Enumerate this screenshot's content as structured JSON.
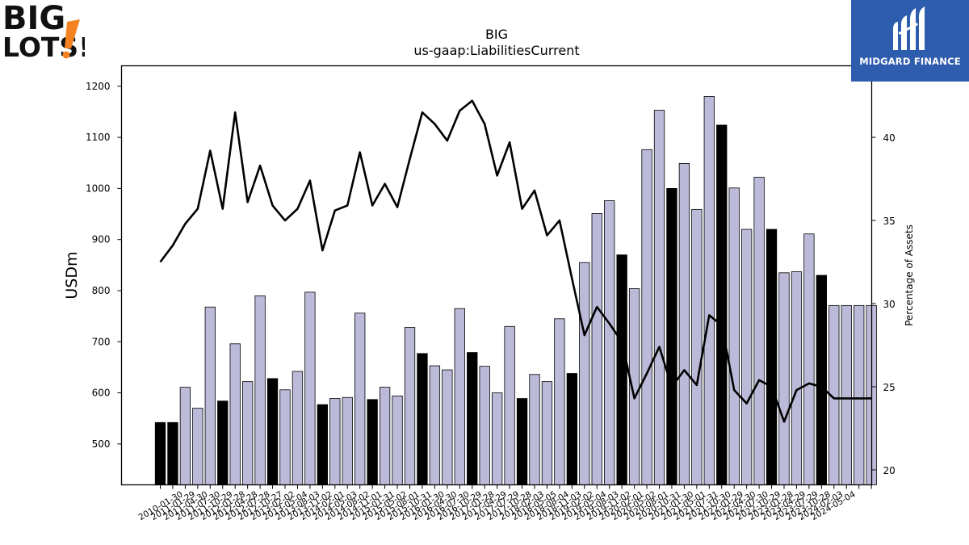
{
  "logos": {
    "left_text": [
      "BIG",
      "LOTS!"
    ],
    "right_text": "MIDGARD FINANCE",
    "colors": {
      "left_dark": "#111111",
      "left_accent": "#f58220",
      "right_bg": "#2f5dae"
    }
  },
  "chart_data": {
    "type": "bar",
    "title": "BIG",
    "subtitle": "us-gaap:LiabilitiesCurrent",
    "ylabel": "USDm",
    "y2label": "Percentage of Assets",
    "ylim": [
      420,
      1240
    ],
    "y2lim": [
      19.1,
      44.3
    ],
    "yticks": [
      500,
      600,
      700,
      800,
      900,
      1000,
      1100,
      1200
    ],
    "y2ticks": [
      20,
      25,
      30,
      35,
      40
    ],
    "grid": false,
    "colors": {
      "bar_default": "#bcbad9",
      "bar_highlight": "#000000",
      "line": "#000000"
    },
    "categories": [
      "2010-01-30",
      "2010-05-01",
      "2010-07-31",
      "2010-10-30",
      "2011-01-29",
      "2011-04-30",
      "2011-07-30",
      "2011-10-29",
      "2012-01-28",
      "2012-04-28",
      "2012-07-28",
      "2012-10-27",
      "2013-02-02",
      "2013-05-04",
      "2013-08-03",
      "2013-11-02",
      "2014-02-01",
      "2014-05-03",
      "2014-08-02",
      "2014-11-01",
      "2015-01-31",
      "2015-05-02",
      "2015-08-01",
      "2015-10-31",
      "2016-01-30",
      "2016-04-30",
      "2016-07-30",
      "2016-10-29",
      "2017-01-28",
      "2017-04-29",
      "2017-07-29",
      "2017-10-28",
      "2018-02-03",
      "2018-05-05",
      "2018-08-04",
      "2018-11-03",
      "2019-02-02",
      "2019-05-04",
      "2019-08-03",
      "2019-11-02",
      "2020-02-01",
      "2020-05-02",
      "2020-08-01",
      "2020-10-31",
      "2021-01-30",
      "2021-05-01",
      "2021-07-31",
      "2021-10-30",
      "2022-01-29",
      "2022-04-30",
      "2022-07-30",
      "2022-10-29",
      "2023-01-28",
      "2023-04-29",
      "2023-07-29",
      "2023-10-28",
      "2024-02-03",
      "2024-05-04"
    ],
    "xtick_labels": [
      "2010-01-30",
      "2011-01-29",
      "2011-04-30",
      "2011-07-30",
      "2011-10-29",
      "2012-01-28",
      "2012-04-28",
      "2012-07-28",
      "2012-10-27",
      "2013-02-02",
      "2013-05-04",
      "2013-08-03",
      "2013-11-02",
      "2014-02-01",
      "2014-05-03",
      "2014-08-02",
      "2014-11-01",
      "2015-01-31",
      "2015-05-02",
      "2015-08-01",
      "2015-10-31",
      "2016-01-30",
      "2016-04-30",
      "2016-07-30",
      "2016-10-29",
      "2017-01-28",
      "2017-04-29",
      "2017-07-29",
      "2017-10-28",
      "2018-02-03",
      "2018-05-05",
      "2018-08-04",
      "2018-11-03",
      "2019-02-02",
      "2019-05-04",
      "2019-08-03",
      "2019-11-02",
      "2020-02-01",
      "2020-05-02",
      "2020-08-01",
      "2020-10-31",
      "2021-01-30",
      "2021-05-01",
      "2021-07-31",
      "2021-10-30",
      "2022-01-29",
      "2022-04-30",
      "2022-07-30",
      "2022-10-29",
      "2023-01-28",
      "2023-04-29",
      "2023-07-29",
      "2023-10-28",
      "2024-02-03",
      "2024-05-04"
    ],
    "highlight": [
      1,
      1,
      0,
      0,
      0,
      1,
      0,
      0,
      0,
      1,
      0,
      0,
      0,
      1,
      0,
      0,
      0,
      1,
      0,
      0,
      0,
      1,
      0,
      0,
      0,
      1,
      0,
      0,
      0,
      1,
      0,
      0,
      0,
      1,
      0,
      0,
      0,
      1,
      0,
      0,
      0,
      1,
      0,
      0,
      0,
      1,
      0,
      0,
      0,
      1,
      0,
      0,
      0,
      1,
      0,
      0,
      0,
      0
    ],
    "series": [
      {
        "type": "bar",
        "values": [
          542,
          542,
          611,
          570,
          768,
          584,
          696,
          622,
          790,
          628,
          606,
          642,
          797,
          577,
          589,
          591,
          756,
          587,
          611,
          594,
          728,
          677,
          653,
          645,
          765,
          679,
          652,
          600,
          730,
          589,
          636,
          622,
          745,
          638,
          855,
          951,
          976,
          870,
          804,
          1076,
          1153,
          1000,
          1049,
          959,
          1180,
          1124,
          1001,
          920,
          1022,
          920,
          835,
          837,
          911,
          830,
          771,
          771,
          771,
          771
        ]
      },
      {
        "type": "line",
        "axis": "right",
        "values": [
          32.5,
          33.5,
          34.8,
          35.7,
          39.2,
          35.7,
          41.5,
          36.1,
          38.3,
          35.9,
          35.0,
          35.7,
          37.4,
          33.2,
          35.6,
          35.9,
          39.1,
          35.9,
          37.2,
          35.8,
          38.7,
          41.5,
          40.8,
          39.8,
          41.6,
          42.2,
          40.8,
          37.7,
          39.7,
          35.7,
          36.8,
          34.1,
          35.0,
          31.5,
          28.1,
          29.8,
          28.8,
          27.7,
          24.3,
          25.8,
          27.4,
          25.0,
          26.0,
          25.1,
          29.3,
          28.7,
          24.8,
          24.0,
          25.4,
          25.0,
          22.9,
          24.8,
          25.2,
          25.0,
          24.3,
          24.3,
          24.3,
          24.3
        ]
      }
    ]
  }
}
